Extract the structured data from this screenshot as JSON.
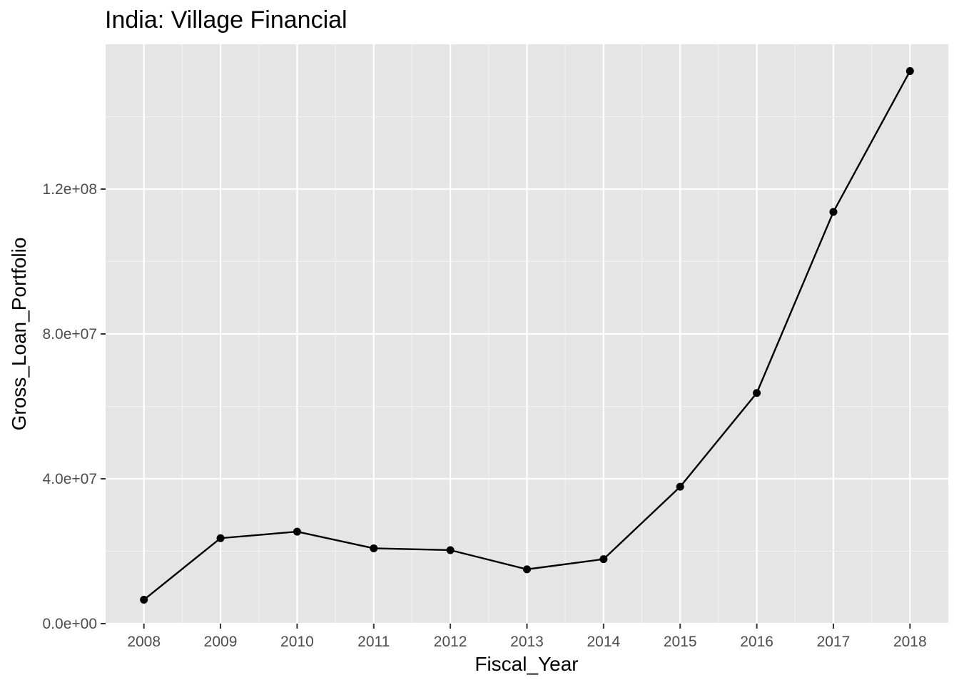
{
  "chart_data": {
    "type": "line",
    "title": "India:  Village Financial",
    "xlabel": "Fiscal_Year",
    "ylabel": "Gross_Loan_Portfolio",
    "x": [
      2008,
      2009,
      2010,
      2011,
      2012,
      2013,
      2014,
      2015,
      2016,
      2017,
      2018
    ],
    "series": [
      {
        "values": [
          6600000,
          23600000,
          25400000,
          20800000,
          20300000,
          15000000,
          17800000,
          37800000,
          63700000,
          113700000,
          152600000
        ]
      }
    ],
    "xlim": [
      2007.5,
      2018.5
    ],
    "ylim": [
      0,
      160000000
    ],
    "x_ticks": [
      2008,
      2009,
      2010,
      2011,
      2012,
      2013,
      2014,
      2015,
      2016,
      2017,
      2018
    ],
    "x_tick_labels": [
      "2008",
      "2009",
      "2010",
      "2011",
      "2012",
      "2013",
      "2014",
      "2015",
      "2016",
      "2017",
      "2018"
    ],
    "y_ticks": [
      0,
      40000000,
      80000000,
      120000000
    ],
    "y_tick_labels": [
      "0.0e+00",
      "4.0e+07",
      "8.0e+07",
      "1.2e+08"
    ],
    "grid": true,
    "panel_color": "#e5e5e5",
    "line_color": "#000000",
    "point_color": "#000000"
  }
}
